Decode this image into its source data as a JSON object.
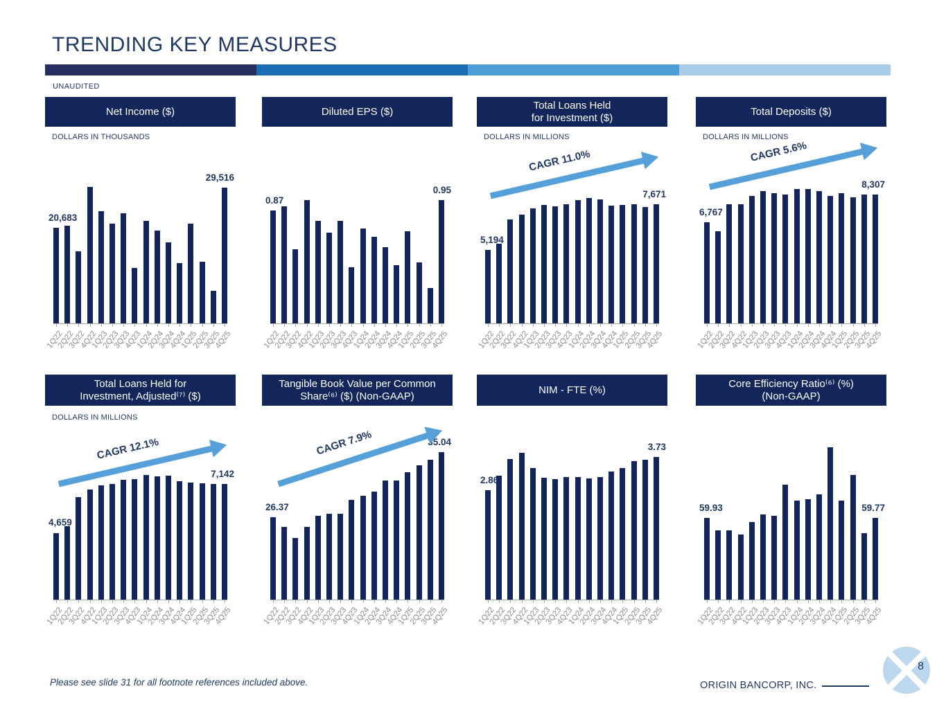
{
  "title": "TRENDING KEY MEASURES",
  "unaudited_label": "UNAUDITED",
  "accent_colors": [
    "#242E61",
    "#1C6CB4",
    "#4D9ED7",
    "#A9CDE9"
  ],
  "bar_color": "#13265C",
  "arrow_color": "#56A0D9",
  "footer": {
    "note": "Please see slide 31 for all footnote references included above.",
    "company": "ORIGIN BANCORP, INC.",
    "page_number": "8"
  },
  "chart_data": {
    "categories": [
      "1Q22",
      "2Q22",
      "3Q22",
      "4Q22",
      "1Q23",
      "2Q23",
      "3Q23",
      "4Q23",
      "1Q24",
      "2Q24",
      "3Q24",
      "4Q24",
      "1Q25",
      "2Q25",
      "3Q25",
      "4Q25"
    ],
    "charts": [
      {
        "type": "bar",
        "title": "Net Income ($)",
        "units": "DOLLARS IN THOUSANDS",
        "cagr": null,
        "label_first": "20,683",
        "label_last": "29,516",
        "ylim": [
          0,
          29600
        ],
        "values": [
          20683,
          21200,
          15600,
          29600,
          24400,
          21600,
          23900,
          12100,
          22200,
          20200,
          17600,
          13100,
          21700,
          13400,
          7000,
          29516
        ]
      },
      {
        "type": "bar",
        "title": "Diluted EPS ($)",
        "units": null,
        "cagr": null,
        "label_first": "0.87",
        "label_last": "0.95",
        "ylim": [
          0,
          0.95
        ],
        "values": [
          0.87,
          0.9,
          0.57,
          0.95,
          0.79,
          0.7,
          0.79,
          0.43,
          0.73,
          0.67,
          0.59,
          0.45,
          0.71,
          0.47,
          0.27,
          0.95
        ]
      },
      {
        "type": "bar",
        "title": "Total Loans Held\nfor Investment ($)",
        "units": "DOLLARS IN MILLIONS",
        "cagr": "CAGR 11.0%",
        "label_first": "5,194",
        "label_last": "7,671",
        "ylim": [
          1200,
          8020
        ],
        "values": [
          5194,
          5520,
          6870,
          7110,
          7450,
          7650,
          7580,
          7680,
          7920,
          8020,
          7950,
          7610,
          7650,
          7680,
          7550,
          7671
        ]
      },
      {
        "type": "bar",
        "title": "Total Deposits ($)",
        "units": "DOLLARS IN MILLIONS",
        "cagr": "CAGR 5.6%",
        "label_first": "6,767",
        "label_last": "8,307",
        "ylim": [
          1250,
          8600
        ],
        "values": [
          6767,
          6300,
          7780,
          7780,
          8220,
          8500,
          8370,
          8280,
          8600,
          8600,
          8480,
          8230,
          8370,
          8140,
          8310,
          8307
        ]
      },
      {
        "type": "bar",
        "title": "Total Loans Held for\nInvestment, Adjusted⁽⁷⁾ ($)",
        "units": "DOLLARS IN MILLIONS",
        "cagr": "CAGR 12.1%",
        "label_first": "4,659",
        "label_last": "7,142",
        "ylim": [
          1280,
          7580
        ],
        "values": [
          4659,
          4990,
          6470,
          6850,
          7070,
          7120,
          7340,
          7370,
          7580,
          7520,
          7530,
          7260,
          7210,
          7170,
          7120,
          7142
        ]
      },
      {
        "type": "bar",
        "title": "Tangible Book Value per Common\nShare⁽⁶⁾ ($) (Non-GAAP)",
        "units": null,
        "cagr": "CAGR 7.9%",
        "label_first": "26.37",
        "label_last": "35.04",
        "ylim": [
          15.3,
          35.04
        ],
        "values": [
          26.37,
          25.08,
          23.53,
          25.02,
          26.5,
          26.84,
          26.81,
          28.64,
          29.17,
          29.79,
          31.28,
          31.28,
          32.4,
          33.33,
          34.04,
          35.04
        ]
      },
      {
        "type": "bar",
        "title": "NIM - FTE (%)",
        "units": null,
        "cagr": null,
        "label_first": "2.86",
        "label_last": "3.73",
        "ylim": [
          0,
          3.84
        ],
        "values": [
          2.86,
          3.25,
          3.68,
          3.84,
          3.44,
          3.18,
          3.15,
          3.2,
          3.2,
          3.17,
          3.2,
          3.35,
          3.44,
          3.63,
          3.66,
          3.73
        ]
      },
      {
        "type": "bar",
        "title": "Core Efficiency Ratio⁽⁶⁾ (%)\n(Non-GAAP)",
        "units": null,
        "cagr": null,
        "label_first": "59.93",
        "label_last": "59.77",
        "ylim": [
          31.5,
          84.3
        ],
        "values": [
          59.93,
          55.4,
          55.4,
          54.1,
          58.5,
          61.1,
          60.5,
          71.3,
          65.8,
          66.3,
          68.1,
          84.3,
          65.8,
          74.7,
          54.5,
          59.77
        ]
      }
    ]
  }
}
